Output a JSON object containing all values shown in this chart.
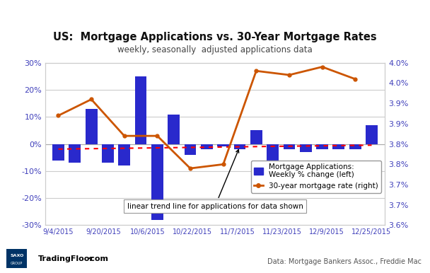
{
  "title": "US:  Mortgage Applications vs. 30-Year Mortgage Rates",
  "subtitle": "weekly, seasonally  adjusted applications data",
  "xlabel_dates": [
    "9/4/2015",
    "9/20/2015",
    "10/6/2015",
    "10/22/2015",
    "11/7/2015",
    "11/23/2015",
    "12/9/2015",
    "12/25/2015"
  ],
  "bar_x_indices": [
    0,
    1,
    2,
    3,
    4,
    5,
    6,
    7,
    8,
    9,
    10,
    11,
    12,
    13,
    14,
    15,
    16,
    17,
    18,
    19
  ],
  "bar_values": [
    -6,
    -7,
    13,
    -7,
    -8,
    25,
    -28,
    11,
    -4,
    -2,
    -1,
    -2,
    5,
    -8,
    -2,
    -3,
    -2,
    -2,
    -2,
    7
  ],
  "rate_x_indices": [
    0,
    2,
    4,
    6,
    8,
    10,
    12,
    14,
    16,
    18
  ],
  "rate_values": [
    3.87,
    3.91,
    3.82,
    3.82,
    3.74,
    3.75,
    3.98,
    3.97,
    3.99,
    3.96
  ],
  "bar_color": "#2929cc",
  "line_color": "#cc5500",
  "trend_color": "#ff0000",
  "left_ylim": [
    -30,
    30
  ],
  "right_ylim": [
    3.6,
    4.0
  ],
  "left_yticks": [
    -30,
    -20,
    -10,
    0,
    10,
    20,
    30
  ],
  "left_ytick_labels": [
    "-30%",
    "-20%",
    "-10%",
    "0%",
    "10%",
    "20%",
    "30%"
  ],
  "right_ytick_vals": [
    3.6,
    3.65,
    3.7,
    3.75,
    3.8,
    3.85,
    3.9,
    3.95,
    4.0
  ],
  "right_ytick_labels": [
    "3.6%",
    "3.7%",
    "3.7%",
    "3.8%",
    "3.8%",
    "3.9%",
    "3.9%",
    "4.0%",
    "4.0%"
  ],
  "footer_right": "Data: Mortgage Bankers Assoc., Freddie Mac",
  "bg_color": "#ffffff",
  "grid_color": "#cccccc",
  "axis_label_color": "#4040bb",
  "title_color": "#111111"
}
